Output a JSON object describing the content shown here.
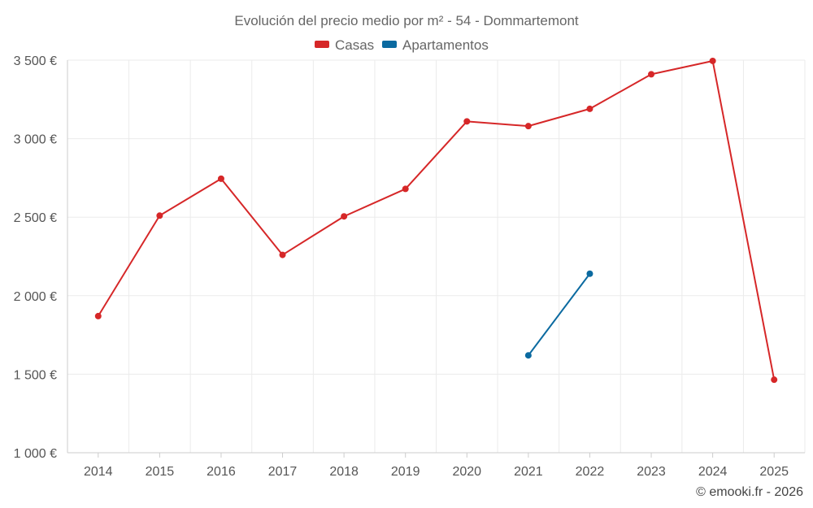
{
  "chart_data": {
    "type": "line",
    "title": "Evolución del precio medio por m² - 54 - Dommartemont",
    "categories": [
      "2014",
      "2015",
      "2016",
      "2017",
      "2018",
      "2019",
      "2020",
      "2021",
      "2022",
      "2023",
      "2024",
      "2025"
    ],
    "series": [
      {
        "name": "Casas",
        "color": "#d62728",
        "values": [
          1870,
          2510,
          2745,
          2260,
          2505,
          2680,
          3110,
          3080,
          3190,
          3410,
          3495,
          1465
        ]
      },
      {
        "name": "Apartamentos",
        "color": "#0b6aa0",
        "values": [
          null,
          null,
          null,
          null,
          null,
          null,
          null,
          1620,
          2140,
          null,
          null,
          null
        ]
      }
    ],
    "y_ticks": [
      1000,
      1500,
      2000,
      2500,
      3000,
      3500
    ],
    "y_tick_labels": [
      "1 000 €",
      "1 500 €",
      "2 000 €",
      "2 500 €",
      "3 000 €",
      "3 500 €"
    ],
    "ylim": [
      1000,
      3500
    ],
    "xlabel": "",
    "ylabel": "",
    "legend_position": "top-center",
    "grid": true
  },
  "credit": "© emooki.fr - 2026"
}
